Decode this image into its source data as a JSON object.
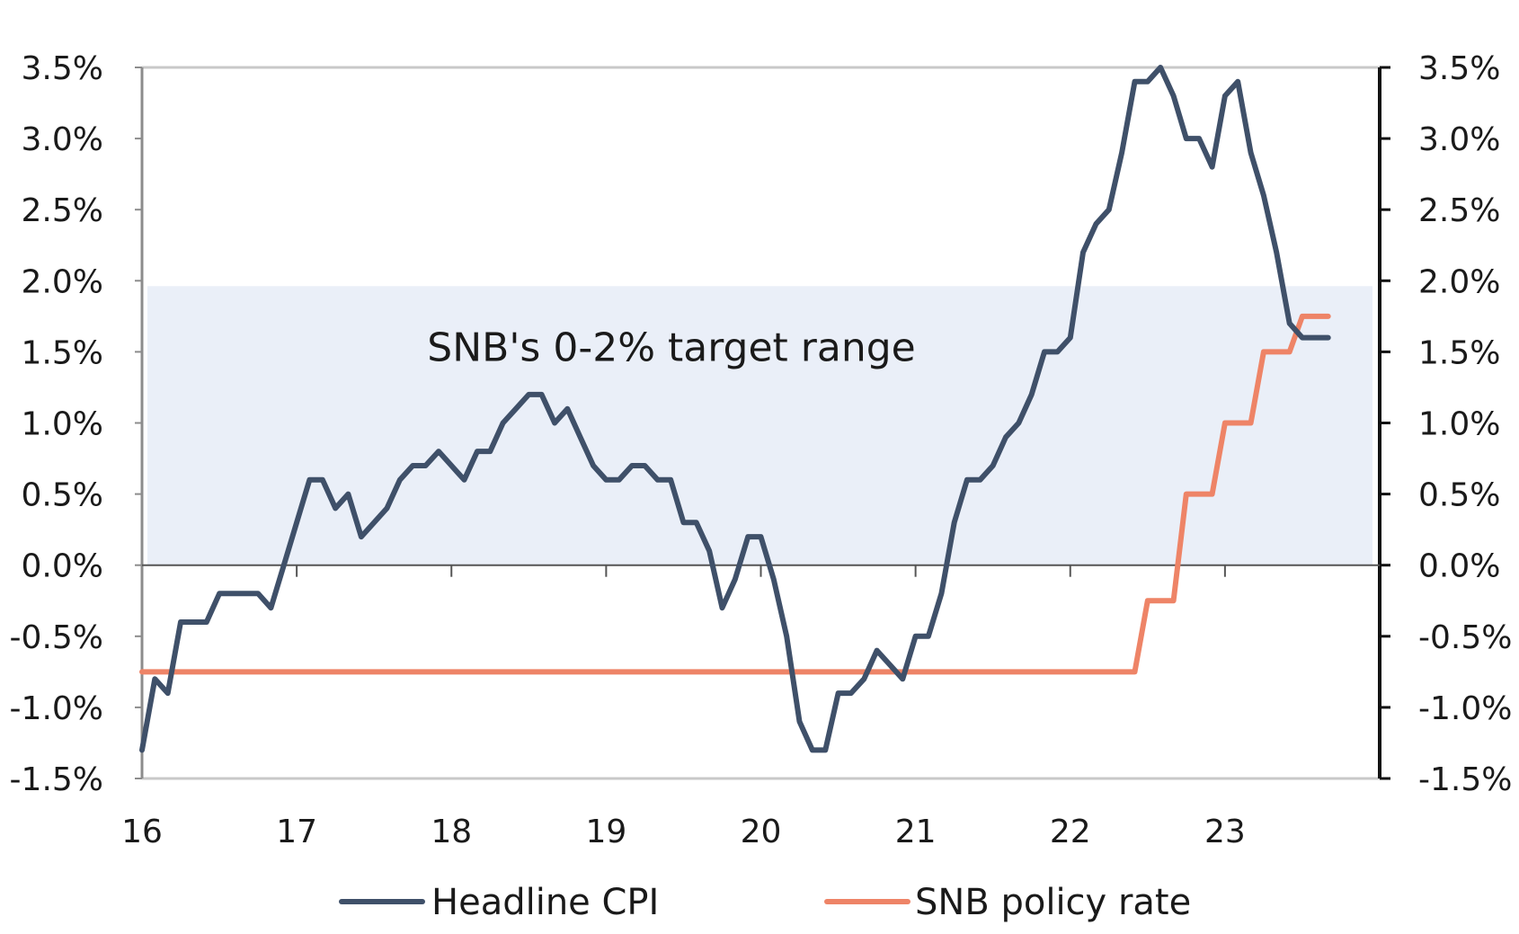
{
  "chart_data": {
    "type": "line",
    "title": "",
    "xlabel": "",
    "ylabel": "",
    "x_range": [
      2016.0,
      2024.0
    ],
    "ylim": [
      -1.5,
      3.5
    ],
    "y_ticks": [
      "3.5%",
      "3.0%",
      "2.5%",
      "2.0%",
      "1.5%",
      "1.0%",
      "0.5%",
      "0.0%",
      "-0.5%",
      "-1.0%",
      "-1.5%"
    ],
    "y_tick_values": [
      3.5,
      3.0,
      2.5,
      2.0,
      1.5,
      1.0,
      0.5,
      0.0,
      -0.5,
      -1.0,
      -1.5
    ],
    "x_ticks": [
      "16",
      "17",
      "18",
      "19",
      "20",
      "21",
      "22",
      "23"
    ],
    "x_tick_values": [
      2016,
      2017,
      2018,
      2019,
      2020,
      2021,
      2022,
      2023
    ],
    "grid": false,
    "target_band": {
      "label": "SNB's 0-2% target range",
      "from": 0.0,
      "to": 2.0,
      "color": "#eaeff8"
    },
    "legend": {
      "position": "bottom-center"
    },
    "series": [
      {
        "name": "Headline CPI",
        "color": "#3f5069",
        "x": [
          2016.0,
          2016.083,
          2016.167,
          2016.25,
          2016.333,
          2016.417,
          2016.5,
          2016.583,
          2016.667,
          2016.75,
          2016.833,
          2016.917,
          2017.0,
          2017.083,
          2017.167,
          2017.25,
          2017.333,
          2017.417,
          2017.5,
          2017.583,
          2017.667,
          2017.75,
          2017.833,
          2017.917,
          2018.0,
          2018.083,
          2018.167,
          2018.25,
          2018.333,
          2018.417,
          2018.5,
          2018.583,
          2018.667,
          2018.75,
          2018.833,
          2018.917,
          2019.0,
          2019.083,
          2019.167,
          2019.25,
          2019.333,
          2019.417,
          2019.5,
          2019.583,
          2019.667,
          2019.75,
          2019.833,
          2019.917,
          2020.0,
          2020.083,
          2020.167,
          2020.25,
          2020.333,
          2020.417,
          2020.5,
          2020.583,
          2020.667,
          2020.75,
          2020.833,
          2020.917,
          2021.0,
          2021.083,
          2021.167,
          2021.25,
          2021.333,
          2021.417,
          2021.5,
          2021.583,
          2021.667,
          2021.75,
          2021.833,
          2021.917,
          2022.0,
          2022.083,
          2022.167,
          2022.25,
          2022.333,
          2022.417,
          2022.5,
          2022.583,
          2022.667,
          2022.75,
          2022.833,
          2022.917,
          2023.0,
          2023.083,
          2023.167,
          2023.25,
          2023.333,
          2023.417,
          2023.5,
          2023.583,
          2023.667
        ],
        "values": [
          -1.3,
          -0.8,
          -0.9,
          -0.4,
          -0.4,
          -0.4,
          -0.2,
          -0.2,
          -0.2,
          -0.2,
          -0.3,
          0.0,
          0.3,
          0.6,
          0.6,
          0.4,
          0.5,
          0.2,
          0.3,
          0.4,
          0.6,
          0.7,
          0.7,
          0.8,
          0.7,
          0.6,
          0.8,
          0.8,
          1.0,
          1.1,
          1.2,
          1.2,
          1.0,
          1.1,
          0.9,
          0.7,
          0.6,
          0.6,
          0.7,
          0.7,
          0.6,
          0.6,
          0.3,
          0.3,
          0.1,
          -0.3,
          -0.1,
          0.2,
          0.2,
          -0.1,
          -0.5,
          -1.1,
          -1.3,
          -1.3,
          -0.9,
          -0.9,
          -0.8,
          -0.6,
          -0.7,
          -0.8,
          -0.5,
          -0.5,
          -0.2,
          0.3,
          0.6,
          0.6,
          0.7,
          0.9,
          1.0,
          1.2,
          1.5,
          1.5,
          1.6,
          2.2,
          2.4,
          2.5,
          2.9,
          3.4,
          3.4,
          3.5,
          3.3,
          3.0,
          3.0,
          2.8,
          3.3,
          3.4,
          2.9,
          2.6,
          2.2,
          1.7,
          1.6,
          1.6,
          1.6
        ]
      },
      {
        "name": "SNB policy rate",
        "color": "#ee8467",
        "x": [
          2016.0,
          2022.417,
          2022.5,
          2022.667,
          2022.75,
          2022.917,
          2023.0,
          2023.167,
          2023.25,
          2023.417,
          2023.5,
          2023.667
        ],
        "values": [
          -0.75,
          -0.75,
          -0.25,
          -0.25,
          0.5,
          0.5,
          1.0,
          1.0,
          1.5,
          1.5,
          1.75,
          1.75
        ]
      }
    ]
  }
}
